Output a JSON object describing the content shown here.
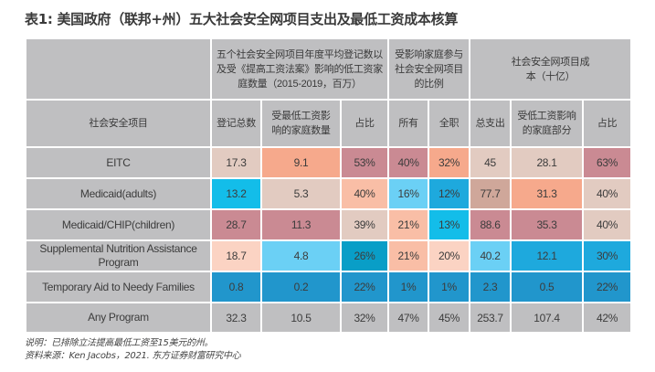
{
  "title": "表1: 美国政府（联邦+州）五大社会安全网项目支出及最低工资成本核算",
  "header": {
    "group1": "五个社会安全网项目年度平均登记数以及受《提高工资法案》影响的低工资家庭数量（2015-2019，百万）",
    "group2": "受影响家庭参与社会安全网项目的比例",
    "group3": "社会安全网项目成本（十亿）",
    "row_label": "社会安全项目",
    "columns": [
      "登记总数",
      "受最低工资影响的家庭数量",
      "占比",
      "所有",
      "全职",
      "总支出",
      "受低工资影响的家庭部分",
      "占比"
    ]
  },
  "rows": [
    {
      "program": "EITC",
      "values": [
        "17.3",
        "9.1",
        "53%",
        "40%",
        "32%",
        "45",
        "28.1",
        "63%"
      ],
      "colors": [
        "c-lpink",
        "c-peach",
        "c-pink",
        "c-pink",
        "c-peach",
        "c-lpink",
        "c-lpink",
        "c-pink"
      ]
    },
    {
      "program": "Medicaid(adults)",
      "values": [
        "13.2",
        "5.3",
        "40%",
        "16%",
        "12%",
        "77.7",
        "31.3",
        "40%"
      ],
      "colors": [
        "c-cyan",
        "c-lpink",
        "c-lpeach",
        "c-lcyan",
        "c-blue",
        "c-tan",
        "c-peach",
        "c-lpink"
      ]
    },
    {
      "program": "Medicaid/CHIP(children)",
      "values": [
        "28.7",
        "11.3",
        "39%",
        "21%",
        "13%",
        "88.6",
        "35.3",
        "40%"
      ],
      "colors": [
        "c-pink",
        "c-pink",
        "c-lpink",
        "c-lpeach",
        "c-cyan",
        "c-pink",
        "c-pink",
        "c-lpink"
      ]
    },
    {
      "program": "Supplemental Nutrition Assistance Program",
      "values": [
        "18.7",
        "4.8",
        "26%",
        "21%",
        "20%",
        "40.2",
        "12.1",
        "30%"
      ],
      "colors": [
        "c-vpeach",
        "c-lcyan",
        "c-teal",
        "c-lpeach",
        "c-vpeach",
        "c-lcyan",
        "c-blue",
        "c-blue"
      ]
    },
    {
      "program": "Temporary Aid to Needy Families",
      "values": [
        "0.8",
        "0.2",
        "22%",
        "1%",
        "1%",
        "2.3",
        "0.5",
        "22%"
      ],
      "colors": [
        "c-dblue",
        "c-dblue",
        "c-dblue",
        "c-dblue",
        "c-dblue",
        "c-dblue",
        "c-dblue",
        "c-dblue"
      ]
    },
    {
      "program": "Any Program",
      "values": [
        "32.3",
        "10.5",
        "32%",
        "47%",
        "45%",
        "253.7",
        "107.4",
        "42%"
      ],
      "colors": [
        "c-gray",
        "c-gray",
        "c-gray",
        "c-gray",
        "c-gray",
        "c-gray",
        "c-gray",
        "c-gray"
      ]
    }
  ],
  "notes": {
    "note": "说明：已排除立法提高最低工资至15美元的州。",
    "source": "资料来源：Ken Jacobs，2021. 东方证券财富研究中心"
  }
}
